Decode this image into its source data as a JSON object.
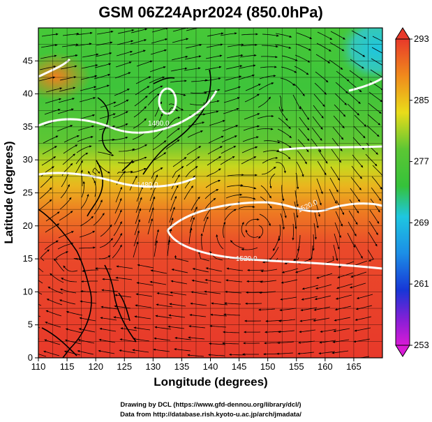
{
  "title": "GSM 06Z24Apr2024 (850.0hPa)",
  "xlabel": "Longitude (degrees)",
  "ylabel": "Latitude  (degrees)",
  "x_ticks": [
    "110",
    "115",
    "120",
    "125",
    "130",
    "135",
    "140",
    "145",
    "150",
    "155",
    "160",
    "165"
  ],
  "y_ticks": [
    "0",
    "5",
    "10",
    "15",
    "20",
    "25",
    "30",
    "35",
    "40",
    "45"
  ],
  "colorbar_labels": [
    "293",
    "285",
    "277",
    "269",
    "261",
    "253"
  ],
  "contour_labels": [
    "1480.0",
    "1480.0",
    "1520.0",
    "1520.0"
  ],
  "credits": [
    "Drawing by DCL (https://www.gfd-dennou.org/library/dcl/)",
    "Data from http://database.rish.kyoto-u.ac.jp/arch/jmadata/"
  ],
  "colors": {
    "warm": "#e8392a",
    "orange": "#f08a1c",
    "yellow": "#e9dc1a",
    "green": "#35c23a",
    "cyan": "#1ec6e0",
    "blue": "#1736d6",
    "magenta": "#d81ad6"
  },
  "chart_data": {
    "type": "heatmap",
    "xlim": [
      110,
      170
    ],
    "ylim": [
      0,
      50
    ],
    "colorbar_range": [
      253,
      293
    ],
    "colorbar_ticks": [
      293,
      285,
      277,
      269,
      261,
      253
    ],
    "contour_values": [
      1480,
      1520
    ]
  }
}
